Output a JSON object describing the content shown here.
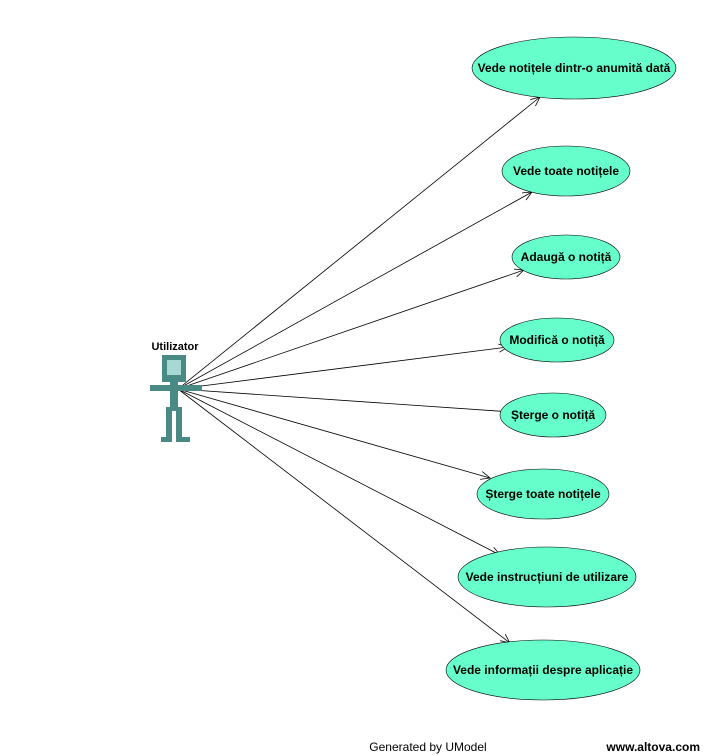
{
  "colors": {
    "use_case_fill": "#66ffcc",
    "actor_fill": "#4a8a84",
    "actor_head_inner": "#a8d8d4"
  },
  "actor": {
    "name": "Utilizator"
  },
  "use_cases": [
    {
      "label": "Vede notițele dintr-o anumită dată"
    },
    {
      "label": "Vede toate notițele"
    },
    {
      "label": "Adaugă o notiță"
    },
    {
      "label": "Modifică o notiță"
    },
    {
      "label": "Șterge o notiță"
    },
    {
      "label": "Șterge toate notițele"
    },
    {
      "label": "Vede instrucțiuni de utilizare"
    },
    {
      "label": "Vede informații despre aplicație"
    }
  ],
  "footer": {
    "generated_by": "Generated by UModel",
    "url": "www.altova.com"
  }
}
